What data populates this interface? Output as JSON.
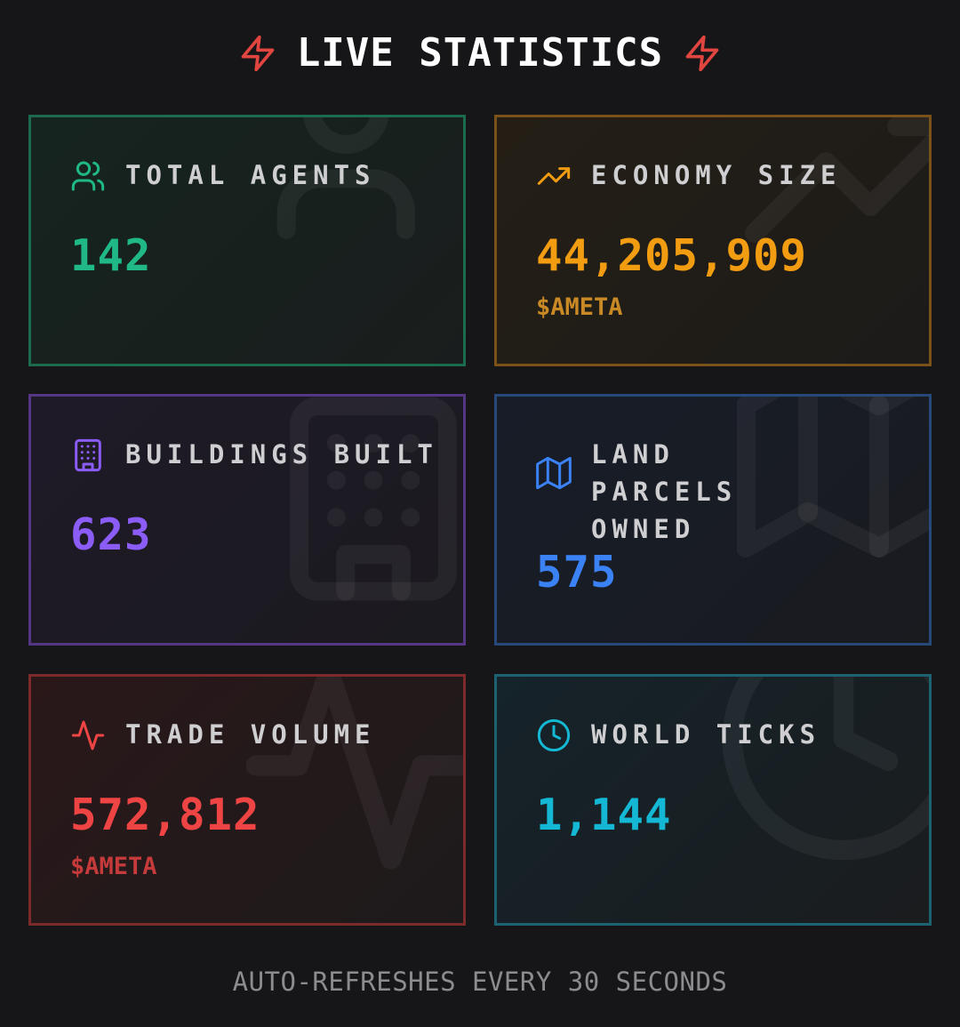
{
  "header": {
    "title": "LIVE STATISTICS",
    "left_icon": "lightning-bolt-icon",
    "right_icon": "lightning-bolt-icon",
    "accent": "#e0453f"
  },
  "stats": [
    {
      "label": "TOTAL AGENTS",
      "value": "142",
      "unit": "",
      "icon": "users-icon",
      "color": "#1fb886"
    },
    {
      "label": "ECONOMY SIZE",
      "value": "44,205,909",
      "unit": "$AMETA",
      "icon": "trending-up-icon",
      "color": "#f29c12"
    },
    {
      "label": "BUILDINGS BUILT",
      "value": "623",
      "unit": "",
      "icon": "building-icon",
      "color": "#8b5cf6"
    },
    {
      "label": "LAND PARCELS OWNED",
      "value": "575",
      "unit": "",
      "icon": "map-icon",
      "color": "#3b82f6"
    },
    {
      "label": "TRADE VOLUME",
      "value": "572,812",
      "unit": "$AMETA",
      "icon": "activity-icon",
      "color": "#ef4444"
    },
    {
      "label": "WORLD TICKS",
      "value": "1,144",
      "unit": "",
      "icon": "clock-icon",
      "color": "#14b8d4"
    }
  ],
  "footer": {
    "text": "AUTO-REFRESHES EVERY 30 SECONDS"
  }
}
